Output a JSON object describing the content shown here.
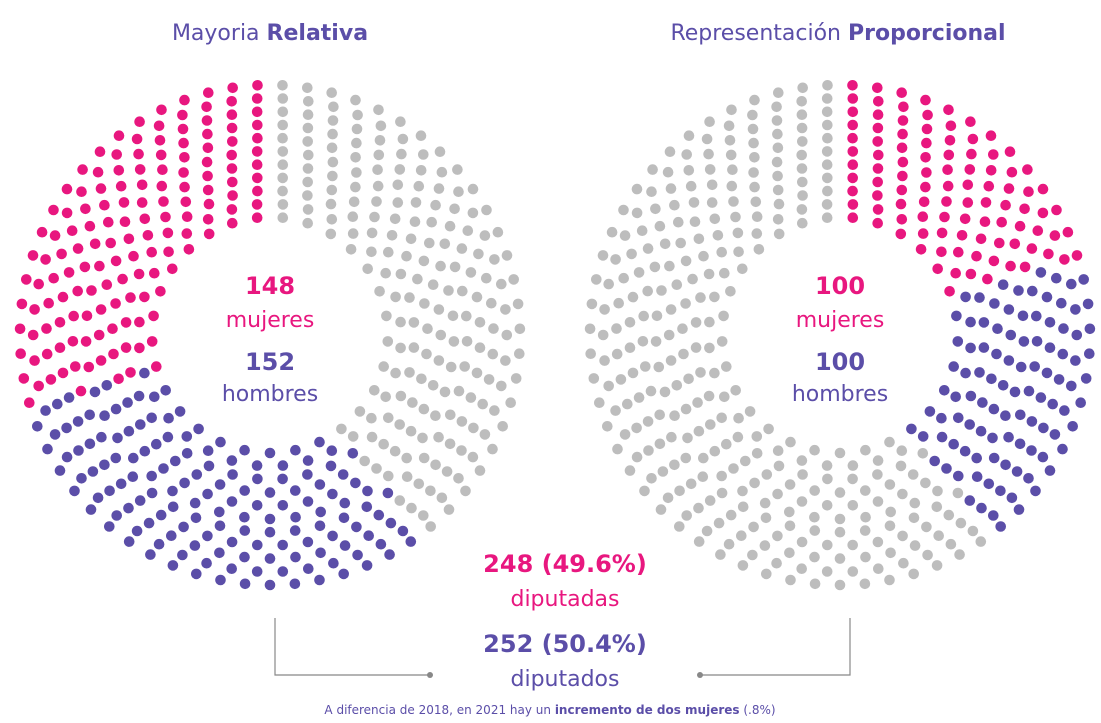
{
  "chart_data": [
    {
      "type": "dot-ring",
      "title": "Mayoria",
      "title_bold": "Relativa",
      "other_color": "#bdbdbd",
      "series": [
        {
          "name": "mujeres",
          "color": "#e8177f",
          "values": [
            148
          ]
        },
        {
          "name": "hombres",
          "color": "#5b4ea8",
          "values": [
            152
          ]
        }
      ]
    },
    {
      "type": "dot-ring",
      "title": "Representación",
      "title_bold": "Proporcional",
      "other_color": "#bdbdbd",
      "series": [
        {
          "name": "mujeres",
          "color": "#e8177f",
          "values": [
            100
          ]
        },
        {
          "name": "hombres",
          "color": "#5b4ea8",
          "values": [
            100
          ]
        }
      ]
    }
  ],
  "summary": {
    "women_count": "248 (49.6%)",
    "women_label": "diputadas",
    "men_count": "252 (50.4%)",
    "men_label": "diputados"
  },
  "footnote": {
    "before": "A diferencia de 2018, en 2021 hay un ",
    "bold": "incremento de dos mujeres",
    "after": " (.8%)"
  }
}
